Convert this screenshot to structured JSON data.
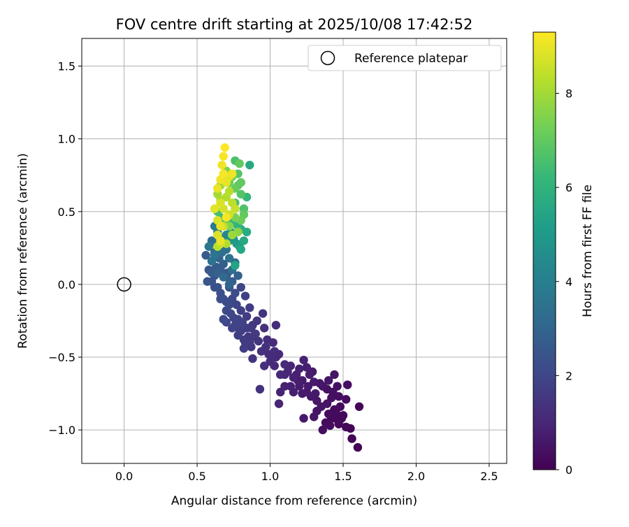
{
  "chart_data": {
    "type": "scatter",
    "title": "FOV centre drift starting at 2025/10/08 17:42:52",
    "xlabel": "Angular distance from reference (arcmin)",
    "ylabel": "Rotation from reference (arcmin)",
    "xlim": [
      -0.29,
      2.62
    ],
    "ylim": [
      -1.23,
      1.69
    ],
    "xticks": [
      0.0,
      0.5,
      1.0,
      1.5,
      2.0,
      2.5
    ],
    "xtick_labels": [
      "0.0",
      "0.5",
      "1.0",
      "1.5",
      "2.0",
      "2.5"
    ],
    "yticks": [
      -1.0,
      -0.5,
      0.0,
      0.5,
      1.0,
      1.5
    ],
    "ytick_labels": [
      "−1.0",
      "−0.5",
      "0.0",
      "0.5",
      "1.0",
      "1.5"
    ],
    "grid": true,
    "legend": {
      "location": "upper right",
      "entries": [
        "Reference platepar"
      ]
    },
    "reference_point": {
      "x": 0.0,
      "y": 0.0,
      "label": "Reference platepar"
    },
    "colorbar": {
      "label": "Hours from first FF file",
      "range": [
        0,
        9.3
      ],
      "ticks": [
        0,
        2,
        4,
        6,
        8
      ],
      "tick_labels": [
        "0",
        "2",
        "4",
        "6",
        "8"
      ],
      "colormap": "viridis",
      "colormap_stops": [
        "#440154",
        "#482878",
        "#3e4989",
        "#31688e",
        "#26828e",
        "#1f9e89",
        "#35b779",
        "#6ece58",
        "#b5de2b",
        "#fde725"
      ]
    },
    "points_xyh": [
      [
        1.6,
        -1.12,
        0.05
      ],
      [
        1.56,
        -1.06,
        0.1
      ],
      [
        1.55,
        -0.99,
        0.1
      ],
      [
        1.52,
        -0.98,
        0.15
      ],
      [
        1.49,
        -0.92,
        0.2
      ],
      [
        1.46,
        -0.93,
        0.2
      ],
      [
        1.45,
        -0.88,
        0.25
      ],
      [
        1.61,
        -0.84,
        0.1
      ],
      [
        1.52,
        -0.79,
        0.3
      ],
      [
        1.53,
        -0.69,
        0.35
      ],
      [
        1.44,
        -0.86,
        0.25
      ],
      [
        1.4,
        -0.89,
        0.3
      ],
      [
        1.36,
        -1.0,
        0.35
      ],
      [
        1.41,
        -0.97,
        0.3
      ],
      [
        1.38,
        -0.95,
        0.3
      ],
      [
        1.46,
        -0.7,
        0.4
      ],
      [
        1.47,
        -0.77,
        0.35
      ],
      [
        1.42,
        -0.78,
        0.4
      ],
      [
        1.39,
        -0.82,
        0.45
      ],
      [
        1.35,
        -0.84,
        0.5
      ],
      [
        1.44,
        -0.62,
        0.5
      ],
      [
        1.4,
        -0.66,
        0.55
      ],
      [
        1.32,
        -0.87,
        0.5
      ],
      [
        1.3,
        -0.91,
        0.55
      ],
      [
        1.23,
        -0.92,
        0.6
      ],
      [
        1.36,
        -0.7,
        0.5
      ],
      [
        1.34,
        -0.68,
        0.55
      ],
      [
        1.31,
        -0.75,
        0.6
      ],
      [
        1.28,
        -0.77,
        0.6
      ],
      [
        1.26,
        -0.7,
        0.65
      ],
      [
        1.22,
        -0.75,
        0.7
      ],
      [
        1.22,
        -0.66,
        0.7
      ],
      [
        1.19,
        -0.66,
        0.75
      ],
      [
        1.16,
        -0.74,
        0.8
      ],
      [
        1.18,
        -0.62,
        0.8
      ],
      [
        1.14,
        -0.7,
        0.85
      ],
      [
        1.1,
        -0.7,
        0.85
      ],
      [
        1.07,
        -0.74,
        0.9
      ],
      [
        1.06,
        -0.82,
        0.95
      ],
      [
        1.23,
        -0.52,
        0.9
      ],
      [
        1.2,
        -0.58,
        0.85
      ],
      [
        1.25,
        -0.57,
        0.8
      ],
      [
        1.29,
        -0.6,
        0.7
      ],
      [
        1.3,
        -0.67,
        0.65
      ],
      [
        1.27,
        -0.62,
        0.75
      ],
      [
        1.12,
        -0.6,
        1.0
      ],
      [
        1.07,
        -0.62,
        1.05
      ],
      [
        1.1,
        -0.55,
        1.05
      ],
      [
        1.03,
        -0.56,
        1.1
      ],
      [
        1.04,
        -0.5,
        1.1
      ],
      [
        1.0,
        -0.53,
        1.15
      ],
      [
        0.99,
        -0.48,
        1.2
      ],
      [
        1.03,
        -0.46,
        1.2
      ],
      [
        0.96,
        -0.56,
        1.25
      ],
      [
        0.94,
        -0.46,
        1.3
      ],
      [
        0.97,
        -0.43,
        1.35
      ],
      [
        0.93,
        -0.72,
        1.35
      ],
      [
        0.88,
        -0.51,
        1.4
      ],
      [
        0.92,
        -0.39,
        1.45
      ],
      [
        0.87,
        -0.43,
        1.5
      ],
      [
        0.85,
        -0.36,
        1.55
      ],
      [
        0.9,
        -0.34,
        1.6
      ],
      [
        0.87,
        -0.3,
        1.6
      ],
      [
        0.83,
        -0.4,
        1.65
      ],
      [
        0.82,
        -0.44,
        1.7
      ],
      [
        0.78,
        -0.35,
        1.75
      ],
      [
        0.79,
        -0.31,
        1.8
      ],
      [
        0.81,
        -0.26,
        1.85
      ],
      [
        0.76,
        -0.28,
        1.9
      ],
      [
        0.75,
        -0.23,
        1.95
      ],
      [
        0.73,
        -0.2,
        2.0
      ],
      [
        0.7,
        -0.18,
        2.05
      ],
      [
        0.68,
        -0.24,
        2.1
      ],
      [
        0.72,
        -0.14,
        2.15
      ],
      [
        0.68,
        -0.1,
        2.2
      ],
      [
        0.66,
        -0.06,
        2.25
      ],
      [
        0.64,
        -0.02,
        2.3
      ],
      [
        0.6,
        0.02,
        2.4
      ],
      [
        0.62,
        0.06,
        2.45
      ],
      [
        0.58,
        0.1,
        2.5
      ],
      [
        0.56,
        0.2,
        2.6
      ],
      [
        0.63,
        0.12,
        2.65
      ],
      [
        0.66,
        0.1,
        2.7
      ],
      [
        0.7,
        0.05,
        2.75
      ],
      [
        0.74,
        0.02,
        2.8
      ],
      [
        0.8,
        -0.02,
        2.0
      ],
      [
        0.83,
        -0.08,
        1.85
      ],
      [
        0.86,
        -0.16,
        1.7
      ],
      [
        0.84,
        -0.22,
        1.7
      ],
      [
        0.8,
        -0.18,
        1.8
      ],
      [
        0.77,
        -0.14,
        1.95
      ],
      [
        0.76,
        -0.06,
        2.2
      ],
      [
        0.72,
        -0.02,
        2.4
      ],
      [
        0.71,
        0.08,
        2.6
      ],
      [
        0.68,
        0.14,
        2.8
      ],
      [
        0.65,
        0.18,
        3.0
      ],
      [
        0.62,
        0.22,
        3.1
      ],
      [
        0.6,
        0.3,
        3.2
      ],
      [
        0.63,
        0.28,
        3.3
      ],
      [
        0.67,
        0.22,
        3.35
      ],
      [
        0.7,
        0.24,
        3.45
      ],
      [
        0.72,
        0.18,
        3.5
      ],
      [
        0.76,
        0.15,
        3.55
      ],
      [
        0.74,
        0.1,
        3.4
      ],
      [
        0.78,
        0.06,
        2.9
      ],
      [
        0.88,
        -0.28,
        1.5
      ],
      [
        0.96,
        -0.3,
        1.3
      ],
      [
        0.91,
        -0.25,
        1.45
      ],
      [
        0.95,
        -0.2,
        1.35
      ],
      [
        1.04,
        -0.28,
        1.2
      ],
      [
        0.98,
        -0.38,
        1.25
      ],
      [
        1.02,
        -0.4,
        1.15
      ],
      [
        1.06,
        -0.48,
        1.1
      ],
      [
        1.1,
        -0.62,
        0.95
      ],
      [
        1.14,
        -0.56,
        0.95
      ],
      [
        1.16,
        -0.64,
        0.85
      ],
      [
        1.2,
        -0.7,
        0.75
      ],
      [
        1.25,
        -0.74,
        0.65
      ],
      [
        1.32,
        -0.8,
        0.55
      ],
      [
        1.39,
        -0.72,
        0.45
      ],
      [
        1.43,
        -0.74,
        0.4
      ],
      [
        1.48,
        -0.84,
        0.3
      ],
      [
        1.5,
        -0.9,
        0.2
      ],
      [
        1.47,
        -0.96,
        0.2
      ],
      [
        1.42,
        -0.92,
        0.25
      ],
      [
        0.62,
        0.4,
        3.8
      ],
      [
        0.64,
        0.36,
        3.9
      ],
      [
        0.66,
        0.32,
        4.0
      ],
      [
        0.68,
        0.3,
        4.1
      ],
      [
        0.7,
        0.34,
        4.3
      ],
      [
        0.72,
        0.3,
        4.4
      ],
      [
        0.73,
        0.36,
        4.6
      ],
      [
        0.75,
        0.31,
        4.8
      ],
      [
        0.77,
        0.28,
        5.0
      ],
      [
        0.79,
        0.26,
        5.2
      ],
      [
        0.76,
        0.13,
        5.4
      ],
      [
        0.8,
        0.24,
        5.5
      ],
      [
        0.82,
        0.3,
        5.6
      ],
      [
        0.84,
        0.36,
        5.7
      ],
      [
        0.8,
        0.38,
        5.8
      ],
      [
        0.78,
        0.4,
        6.0
      ],
      [
        0.74,
        0.42,
        6.2
      ],
      [
        0.7,
        0.44,
        6.3
      ],
      [
        0.66,
        0.46,
        6.4
      ],
      [
        0.64,
        0.5,
        6.5
      ],
      [
        0.76,
        0.56,
        6.6
      ],
      [
        0.82,
        0.52,
        6.7
      ],
      [
        0.84,
        0.6,
        6.2
      ],
      [
        0.8,
        0.62,
        6.8
      ],
      [
        0.78,
        0.68,
        6.9
      ],
      [
        0.86,
        0.82,
        5.6
      ],
      [
        0.8,
        0.7,
        7.0
      ],
      [
        0.76,
        0.66,
        7.1
      ],
      [
        0.72,
        0.7,
        7.2
      ],
      [
        0.74,
        0.74,
        7.3
      ],
      [
        0.78,
        0.76,
        6.8
      ],
      [
        0.76,
        0.85,
        6.6
      ],
      [
        0.79,
        0.83,
        7.0
      ],
      [
        0.7,
        0.78,
        7.5
      ],
      [
        0.68,
        0.72,
        7.6
      ],
      [
        0.66,
        0.68,
        7.8
      ],
      [
        0.64,
        0.62,
        8.0
      ],
      [
        0.66,
        0.58,
        8.1
      ],
      [
        0.7,
        0.6,
        8.2
      ],
      [
        0.72,
        0.64,
        8.3
      ],
      [
        0.74,
        0.56,
        8.4
      ],
      [
        0.76,
        0.52,
        8.5
      ],
      [
        0.72,
        0.48,
        8.6
      ],
      [
        0.68,
        0.52,
        8.7
      ],
      [
        0.66,
        0.56,
        8.8
      ],
      [
        0.64,
        0.66,
        9.0
      ],
      [
        0.66,
        0.72,
        9.1
      ],
      [
        0.68,
        0.76,
        9.2
      ],
      [
        0.7,
        0.7,
        9.0
      ],
      [
        0.72,
        0.74,
        8.9
      ],
      [
        0.74,
        0.76,
        9.1
      ],
      [
        0.62,
        0.52,
        8.9
      ],
      [
        0.64,
        0.44,
        8.8
      ],
      [
        0.66,
        0.4,
        9.0
      ],
      [
        0.7,
        0.46,
        9.2
      ],
      [
        0.68,
        0.88,
        9.2
      ],
      [
        0.69,
        0.94,
        9.3
      ],
      [
        0.67,
        0.82,
        9.1
      ],
      [
        0.64,
        0.34,
        8.8
      ],
      [
        0.66,
        0.3,
        9.0
      ],
      [
        0.68,
        0.4,
        8.5
      ],
      [
        0.72,
        0.4,
        7.6
      ],
      [
        0.76,
        0.46,
        7.4
      ],
      [
        0.8,
        0.44,
        7.2
      ],
      [
        0.82,
        0.48,
        7.0
      ],
      [
        0.78,
        0.36,
        7.7
      ],
      [
        0.74,
        0.34,
        7.9
      ],
      [
        0.7,
        0.28,
        8.2
      ],
      [
        0.66,
        0.28,
        8.6
      ],
      [
        0.64,
        0.26,
        8.3
      ],
      [
        0.62,
        0.2,
        3.6
      ],
      [
        0.58,
        0.26,
        3.7
      ],
      [
        0.6,
        0.16,
        3.5
      ],
      [
        0.68,
        0.05,
        3.2
      ],
      [
        0.72,
        0.0,
        3.0
      ],
      [
        0.64,
        0.08,
        2.9
      ],
      [
        0.6,
        0.08,
        2.7
      ],
      [
        0.57,
        0.02,
        2.5
      ],
      [
        0.62,
        -0.02,
        2.35
      ],
      [
        0.66,
        -0.1,
        2.25
      ],
      [
        0.7,
        -0.12,
        2.1
      ],
      [
        0.74,
        -0.1,
        2.05
      ],
      [
        0.78,
        -0.24,
        1.9
      ],
      [
        0.74,
        -0.3,
        1.9
      ],
      [
        0.7,
        -0.26,
        2.0
      ],
      [
        0.8,
        -0.32,
        1.75
      ],
      [
        0.84,
        -0.3,
        1.7
      ],
      [
        0.82,
        -0.38,
        1.6
      ],
      [
        0.86,
        -0.4,
        1.55
      ],
      [
        0.88,
        -0.36,
        1.5
      ]
    ]
  }
}
